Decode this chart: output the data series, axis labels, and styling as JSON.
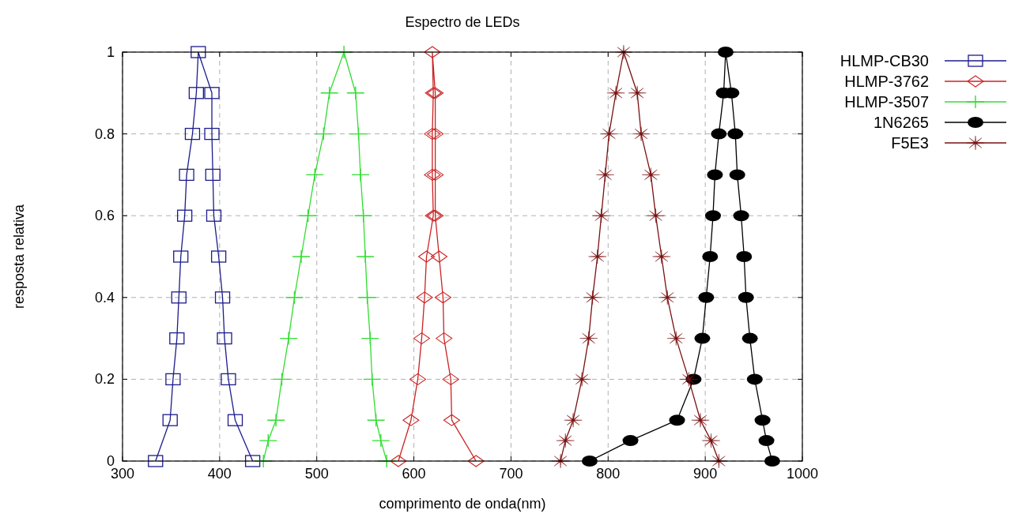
{
  "chart_data": {
    "type": "line",
    "title": "Espectro de LEDs",
    "xlabel": "comprimento de onda(nm)",
    "ylabel": "resposta relativa",
    "xlim": [
      300,
      1000
    ],
    "xticks": [
      300,
      400,
      500,
      600,
      700,
      800,
      900,
      1000
    ],
    "ylim": [
      0,
      1
    ],
    "yticks": [
      0,
      0.2,
      0.4,
      0.6,
      0.8,
      1
    ],
    "grid": true,
    "legend": "top right",
    "line_style": "solid",
    "series": [
      {
        "name": "HLMP-CB30",
        "color": "#1c1c8c",
        "marker": "square",
        "x": [
          334,
          349,
          352,
          356,
          358,
          360,
          364,
          366,
          372,
          376,
          378,
          392,
          392,
          393,
          394,
          399,
          403,
          405,
          409,
          416,
          434
        ],
        "values": [
          0,
          0.1,
          0.2,
          0.3,
          0.4,
          0.5,
          0.6,
          0.7,
          0.8,
          0.9,
          1,
          0.9,
          0.8,
          0.7,
          0.6,
          0.5,
          0.4,
          0.3,
          0.2,
          0.1,
          0
        ]
      },
      {
        "name": "HLMP-3762",
        "color": "#cc2222",
        "marker": "diamond",
        "x": [
          584,
          597,
          604,
          608,
          611,
          613,
          620,
          619,
          619,
          620,
          619,
          622,
          622,
          622,
          622,
          626,
          630,
          631,
          638,
          639,
          664
        ],
        "values": [
          0,
          0.1,
          0.2,
          0.3,
          0.4,
          0.5,
          0.6,
          0.7,
          0.8,
          0.9,
          1,
          0.9,
          0.8,
          0.7,
          0.6,
          0.5,
          0.4,
          0.3,
          0.2,
          0.1,
          0
        ]
      },
      {
        "name": "HLMP-3507",
        "color": "#33dd33",
        "marker": "cross",
        "x": [
          445,
          450,
          458,
          464,
          471,
          477,
          484,
          491,
          498,
          507,
          513,
          528,
          540,
          543,
          545,
          548,
          550,
          552,
          555,
          557,
          561,
          566,
          572
        ],
        "values": [
          0,
          0.05,
          0.1,
          0.2,
          0.3,
          0.4,
          0.5,
          0.6,
          0.7,
          0.8,
          0.9,
          1,
          0.9,
          0.8,
          0.7,
          0.6,
          0.5,
          0.4,
          0.3,
          0.2,
          0.1,
          0.05,
          0
        ]
      },
      {
        "name": "1N6265",
        "color": "#000000",
        "marker": "circle",
        "x": [
          781,
          823,
          871,
          888,
          897,
          901,
          905,
          908,
          910,
          914,
          919,
          921,
          927,
          931,
          933,
          937,
          940,
          942,
          946,
          951,
          959,
          963,
          969
        ],
        "values": [
          0,
          0.05,
          0.1,
          0.2,
          0.3,
          0.4,
          0.5,
          0.6,
          0.7,
          0.8,
          0.9,
          1,
          0.9,
          0.8,
          0.7,
          0.6,
          0.5,
          0.4,
          0.3,
          0.2,
          0.1,
          0.05,
          0
        ]
      },
      {
        "name": "F5E3",
        "color": "#7a1010",
        "marker": "star",
        "x": [
          751,
          756,
          764,
          773,
          780,
          784,
          789,
          793,
          797,
          801,
          808,
          816,
          830,
          834,
          844,
          849,
          855,
          861,
          870,
          883,
          895,
          906,
          914
        ],
        "values": [
          0,
          0.05,
          0.1,
          0.2,
          0.3,
          0.4,
          0.5,
          0.6,
          0.7,
          0.8,
          0.9,
          1,
          0.9,
          0.8,
          0.7,
          0.6,
          0.5,
          0.4,
          0.3,
          0.2,
          0.1,
          0.05,
          0
        ]
      }
    ]
  }
}
